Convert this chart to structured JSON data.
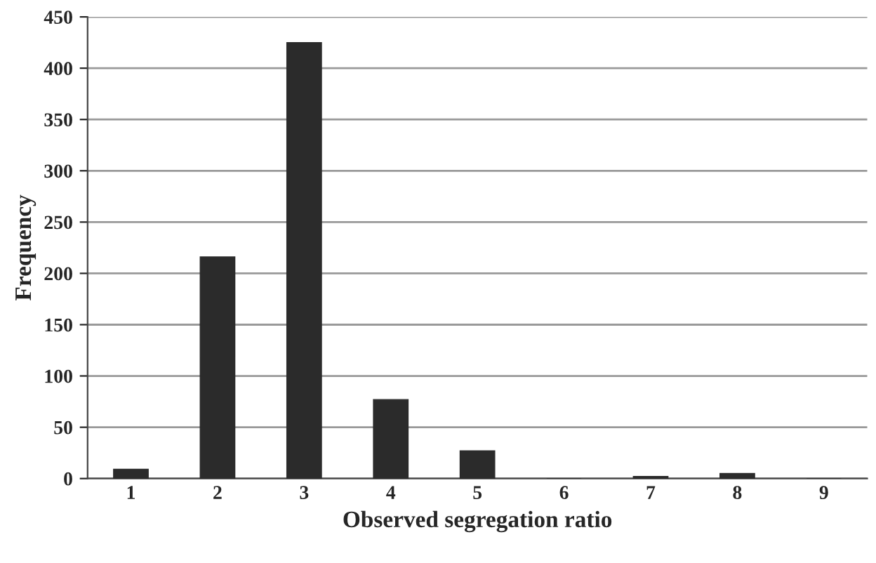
{
  "chart_data": {
    "type": "bar",
    "xlabel": "Observed segregation ratio",
    "ylabel": "Frequency",
    "categories": [
      "1",
      "2",
      "3",
      "4",
      "5",
      "6",
      "7",
      "8",
      "9"
    ],
    "values": [
      9,
      216,
      425,
      77,
      27,
      0,
      2,
      5,
      0
    ],
    "color": "#2b2b2b",
    "ylim": [
      0,
      450
    ],
    "yticks": [
      0,
      50,
      100,
      150,
      200,
      250,
      300,
      350,
      400,
      450
    ],
    "grid": "y"
  }
}
